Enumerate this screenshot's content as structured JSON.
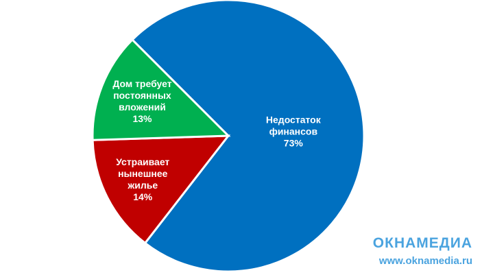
{
  "chart_data": {
    "type": "pie",
    "categories": [
      "Недостаток финансов",
      "Устраивает нынешнее жилье",
      "Дом требует постоянных вложений"
    ],
    "values": [
      73,
      14,
      13
    ],
    "value_labels": [
      "73%",
      "14%",
      "13%"
    ],
    "colors": [
      "#0070c0",
      "#c00000",
      "#00b050"
    ]
  },
  "watermark": {
    "logo": "ОКНАМЕДИА",
    "url": "www.oknamedia.ru"
  }
}
